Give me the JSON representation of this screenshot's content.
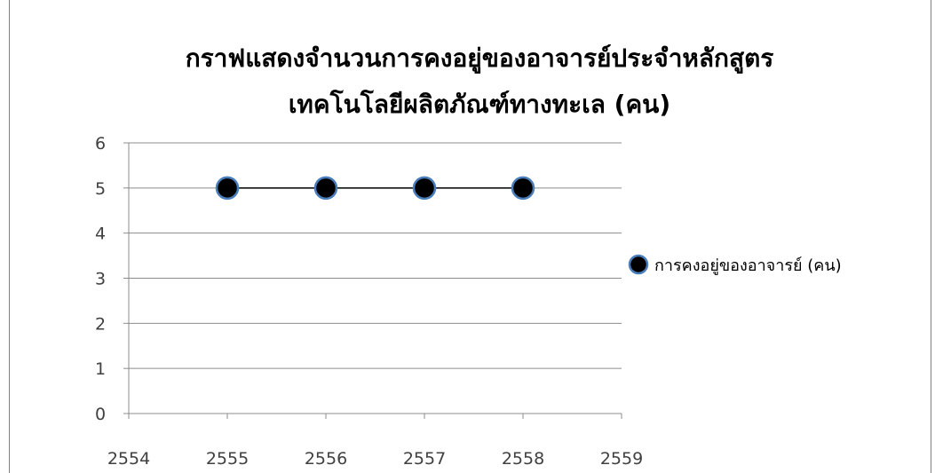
{
  "chart_data": {
    "type": "scatter",
    "title_lines": [
      "กราฟแสดงจำนวนการคงอยู่ของอาจารย์ประจำหลักสูตร",
      "เทคโนโลยีผลิตภัณฑ์ทางทะเล (คน)"
    ],
    "xlabel": "",
    "ylabel": "",
    "xlim": [
      2554,
      2559
    ],
    "ylim": [
      0,
      6
    ],
    "x_ticks": [
      "2554",
      "2555",
      "2556",
      "2557",
      "2558",
      "2559"
    ],
    "y_ticks": [
      "0",
      "1",
      "2",
      "3",
      "4",
      "5",
      "6"
    ],
    "grid": "horizontal",
    "legend_position": "right",
    "series": [
      {
        "name": "การคงอยู่ของอาจารย์ (คน)",
        "x": [
          2555,
          2556,
          2557,
          2558
        ],
        "y": [
          5,
          5,
          5,
          5
        ],
        "marker_color": "#000000",
        "marker_edge_color": "#4a7ebb",
        "line_color": "#000000"
      }
    ]
  }
}
